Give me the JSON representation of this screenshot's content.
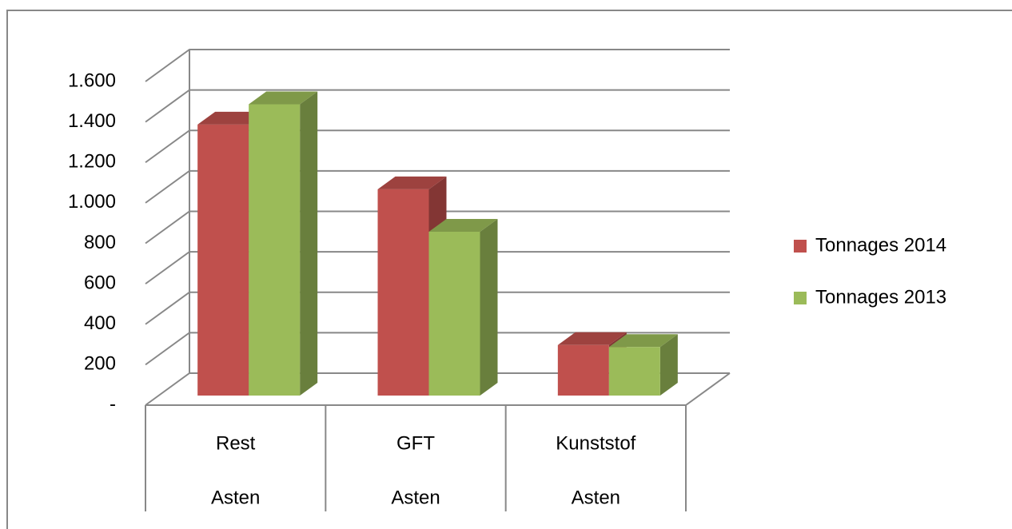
{
  "chart_data": {
    "type": "bar3d",
    "categories": [
      "Rest",
      "GFT",
      "Kunststof"
    ],
    "category_groups": [
      "Asten",
      "Asten",
      "Asten"
    ],
    "series": [
      {
        "name": "Tonnages 2014",
        "color": "#c0504d",
        "values": [
          1340,
          1020,
          250
        ]
      },
      {
        "name": "Tonnages 2013",
        "color": "#9bbb59",
        "values": [
          1440,
          810,
          240
        ]
      }
    ],
    "ylim": [
      0,
      1600
    ],
    "yticks": [
      {
        "value": 0,
        "label": "-"
      },
      200,
      400,
      600,
      800,
      {
        "value": 1000,
        "label": "1.000"
      },
      {
        "value": 1200,
        "label": "1.200"
      },
      {
        "value": 1400,
        "label": "1.400"
      },
      {
        "value": 1600,
        "label": "1.600"
      }
    ],
    "grid": true,
    "legend": "right"
  }
}
